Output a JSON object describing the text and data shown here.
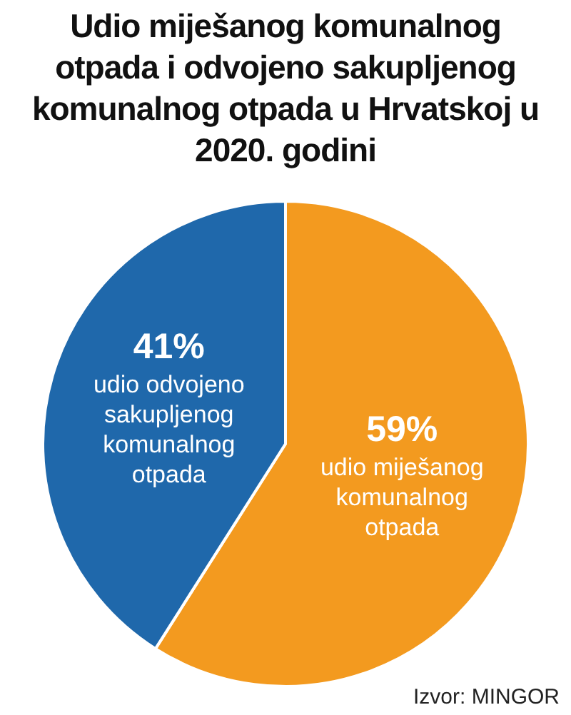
{
  "chart_data": {
    "type": "pie",
    "title": "Udio miješanog komunalnog otpada i odvojeno sakupljenog komunalnog otpada u Hrvatskoj u 2020. godini",
    "categories": [
      "udio miješanog komunalnog otpada",
      "udio odvojeno sakupljenog komunalnog otpada"
    ],
    "values": [
      59,
      41
    ],
    "value_labels": [
      "59%",
      "41%"
    ],
    "colors": [
      "#f39a1f",
      "#1f68ab"
    ],
    "annotations": [
      "Izvor: MINGOR"
    ]
  }
}
